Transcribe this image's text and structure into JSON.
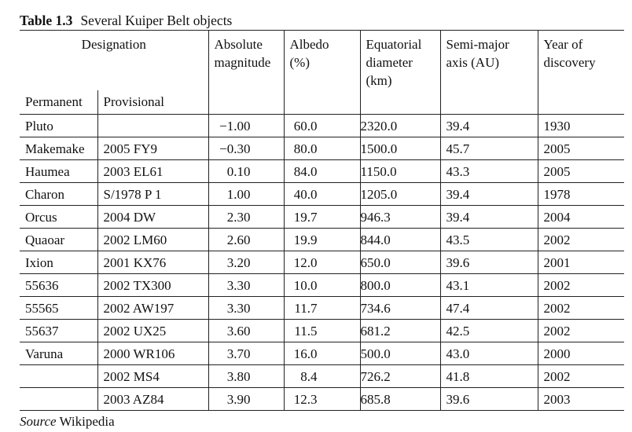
{
  "caption": {
    "number": "Table 1.3",
    "title": "Several Kuiper Belt objects"
  },
  "headers": {
    "designation": "Designation",
    "permanent": "Permanent",
    "provisional": "Provisional",
    "abs_mag_line1": "Absolute",
    "abs_mag_line2": "magnitude",
    "albedo_line1": "Albedo",
    "albedo_line2": "(%)",
    "diam_line1": "Equatorial",
    "diam_line2": "diameter",
    "diam_line3": "(km)",
    "axis_line1": "Semi-major",
    "axis_line2": "axis (AU)",
    "year_line1": "Year of",
    "year_line2": "discovery"
  },
  "rows": [
    {
      "permanent": "Pluto",
      "provisional": "",
      "mag": "−1.00",
      "albedo": "60.0",
      "diameter": "2320.0",
      "axis": "39.4",
      "year": "1930"
    },
    {
      "permanent": "Makemake",
      "provisional": "2005 FY9",
      "mag": "−0.30",
      "albedo": "80.0",
      "diameter": "1500.0",
      "axis": "45.7",
      "year": "2005"
    },
    {
      "permanent": "Haumea",
      "provisional": "2003 EL61",
      "mag": "0.10",
      "albedo": "84.0",
      "diameter": "1150.0",
      "axis": "43.3",
      "year": "2005"
    },
    {
      "permanent": "Charon",
      "provisional": "S/1978 P 1",
      "mag": "1.00",
      "albedo": "40.0",
      "diameter": "1205.0",
      "axis": "39.4",
      "year": "1978"
    },
    {
      "permanent": "Orcus",
      "provisional": "2004 DW",
      "mag": "2.30",
      "albedo": "19.7",
      "diameter": "946.3",
      "axis": "39.4",
      "year": "2004"
    },
    {
      "permanent": "Quaoar",
      "provisional": "2002 LM60",
      "mag": "2.60",
      "albedo": "19.9",
      "diameter": "844.0",
      "axis": "43.5",
      "year": "2002"
    },
    {
      "permanent": "Ixion",
      "provisional": "2001 KX76",
      "mag": "3.20",
      "albedo": "12.0",
      "diameter": "650.0",
      "axis": "39.6",
      "year": "2001"
    },
    {
      "permanent": "55636",
      "provisional": "2002 TX300",
      "mag": "3.30",
      "albedo": "10.0",
      "diameter": "800.0",
      "axis": "43.1",
      "year": "2002"
    },
    {
      "permanent": "55565",
      "provisional": "2002 AW197",
      "mag": "3.30",
      "albedo": "11.7",
      "diameter": "734.6",
      "axis": "47.4",
      "year": "2002"
    },
    {
      "permanent": "55637",
      "provisional": "2002 UX25",
      "mag": "3.60",
      "albedo": "11.5",
      "diameter": "681.2",
      "axis": "42.5",
      "year": "2002"
    },
    {
      "permanent": "Varuna",
      "provisional": "2000 WR106",
      "mag": "3.70",
      "albedo": "16.0",
      "diameter": "500.0",
      "axis": "43.0",
      "year": "2000"
    },
    {
      "permanent": "",
      "provisional": "2002 MS4",
      "mag": "3.80",
      "albedo": "8.4",
      "diameter": "726.2",
      "axis": "41.8",
      "year": "2002"
    },
    {
      "permanent": "",
      "provisional": "2003 AZ84",
      "mag": "3.90",
      "albedo": "12.3",
      "diameter": "685.8",
      "axis": "39.6",
      "year": "2003"
    }
  ],
  "source": {
    "label": "Source",
    "text": "Wikipedia"
  }
}
